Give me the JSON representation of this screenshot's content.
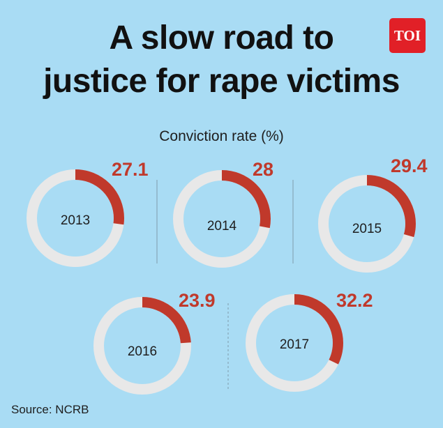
{
  "header": {
    "title_line1": "A slow road to",
    "title_line2": "justice for rape victims",
    "logo_text": "TOI"
  },
  "footer": {
    "source": "Source: NCRB"
  },
  "colors": {
    "background": "#a9dcf4",
    "filled": "#c0392b",
    "remaining": "#e8e8e8",
    "value_text": "#c0392b",
    "logo": "#e12027"
  },
  "chart_data": {
    "type": "pie",
    "variant": "donut",
    "title": "Conviction rate (%)",
    "unit": "%",
    "max": 100,
    "categories": [
      "2013",
      "2014",
      "2015",
      "2016",
      "2017"
    ],
    "values": [
      27.1,
      28,
      29.4,
      23.9,
      32.2
    ],
    "labels": [
      "27.1",
      "28",
      "29.4",
      "23.9",
      "32.2"
    ]
  }
}
